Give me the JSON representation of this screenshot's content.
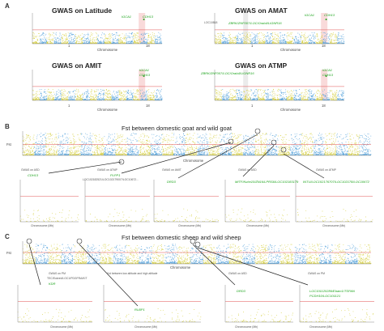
{
  "figure": {
    "panels": {
      "A": {
        "label": "A",
        "plots": [
          {
            "title": "GWAS on Latitude",
            "genes": [
              "IGCA1",
              "CDH13"
            ],
            "xticks": [
              "1",
              "18"
            ],
            "xlabel": "Chromosome",
            "ylabel": "-log10(p)"
          },
          {
            "title": "GWAS on AMAT",
            "genes": [
              "LOC10818",
              "ZBRK/ZNF007/LOC/Orab4/LIGNR16",
              "IGCA1",
              "CDH13"
            ],
            "xticks": [
              "1",
              "18"
            ],
            "xlabel": "Chromosome",
            "ylabel": "-log10(p)"
          },
          {
            "title": "GWAS on AMIT",
            "genes": [
              "IGCA1",
              "CDH13"
            ],
            "xticks": [
              "1",
              "18"
            ],
            "xlabel": "Chromosome",
            "ylabel": "-log10(p)"
          },
          {
            "title": "GWAS on ATMP",
            "genes": [
              "ZBRK/ZNF007/LOC/Orab4/LIGNR16",
              "IGCA1",
              "CDH13"
            ],
            "xticks": [
              "1",
              "18"
            ],
            "xlabel": "Chromosome",
            "ylabel": "-log10(p)"
          }
        ]
      },
      "B": {
        "label": "B",
        "title": "Fst between domestic goat and wild goat",
        "ylabel": "Fst",
        "xlabel": "Chromosome",
        "chromosomes": [
          "1",
          "2",
          "3",
          "4",
          "5",
          "6",
          "7",
          "8",
          "9",
          "10",
          "11",
          "12",
          "13",
          "14",
          "15",
          "16",
          "17",
          "18",
          "19",
          "20",
          "21",
          "22",
          "23",
          "24",
          "25",
          "26",
          "27",
          "28",
          "29",
          "X"
        ],
        "subplots": [
          {
            "title": "GWAS on ASD",
            "genes": [
              "CDH13"
            ],
            "xlabel": "Chromosome (Mb)"
          },
          {
            "title": "GWAS on ATMP",
            "genes": [
              "PLPP1",
              "LOC102182521/LOC102179007/LOC10672..."
            ],
            "xlabel": "Chromosome (Mb)"
          },
          {
            "title": "GWAS on AMIT",
            "genes": [
              "DRD3"
            ],
            "xlabel": "Chromosome (Mb)"
          },
          {
            "title": "GWAS on ASD",
            "genes": [
              "MITF/Kuhn10/ZN16/LPRS6/LOC102183179"
            ],
            "xlabel": "Chromosome (Mb)"
          },
          {
            "title": "GWAS on ATMP",
            "genes": [
              "INTU/LOC102176707/LOC102178/LOC10672"
            ],
            "xlabel": "Chromosome (Mb)"
          }
        ]
      },
      "C": {
        "label": "C",
        "title": "Fst between domestic sheep and wild sheep",
        "ylabel": "Fst",
        "xlabel": "Chromosome",
        "chromosomes": [
          "1",
          "2",
          "3",
          "4",
          "5",
          "6",
          "7",
          "8",
          "9",
          "10",
          "11",
          "12",
          "13",
          "14",
          "15",
          "16",
          "17",
          "18",
          "19",
          "20",
          "21",
          "22",
          "23",
          "24",
          "25",
          "26",
          "X"
        ],
        "subplots": [
          {
            "title": "GWAS on PM",
            "genes": [
              "TEC/Eukre4/LOC1/PDGFRA/KIT",
              "KDR"
            ],
            "xlabel": "Chromosome (Mb)"
          },
          {
            "title": "Vst between low altitude and high altitude",
            "genes": [
              "RLBP1"
            ],
            "xlabel": "Chromosome (Mb)"
          },
          {
            "title": "GWAS on ASD",
            "genes": [
              "DRD3"
            ],
            "xlabel": "Chromosome (Mb)"
          },
          {
            "title": "GWAS on PM",
            "genes": [
              "LOC101120286/Ebam1/TSPAN",
              "PCDH10/LOC101121"
            ],
            "xlabel": "Chromosome (Mb)"
          }
        ]
      }
    },
    "colors": {
      "blue": "#5aa5dc",
      "yellow": "#d8d24a",
      "green": "#1aa31a",
      "threshold": "#e05050",
      "highlight": "#f4b6b6"
    }
  }
}
